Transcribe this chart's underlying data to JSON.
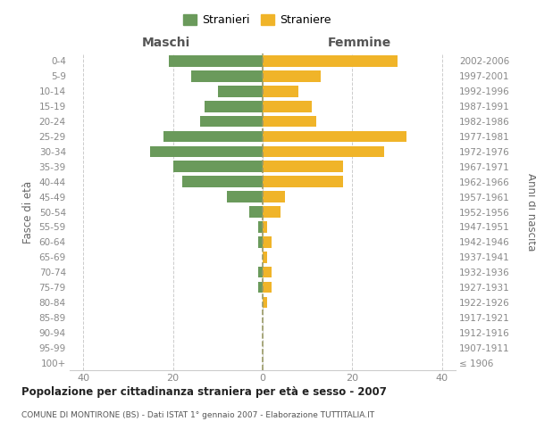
{
  "age_groups": [
    "100+",
    "95-99",
    "90-94",
    "85-89",
    "80-84",
    "75-79",
    "70-74",
    "65-69",
    "60-64",
    "55-59",
    "50-54",
    "45-49",
    "40-44",
    "35-39",
    "30-34",
    "25-29",
    "20-24",
    "15-19",
    "10-14",
    "5-9",
    "0-4"
  ],
  "birth_years": [
    "≤ 1906",
    "1907-1911",
    "1912-1916",
    "1917-1921",
    "1922-1926",
    "1927-1931",
    "1932-1936",
    "1937-1941",
    "1942-1946",
    "1947-1951",
    "1952-1956",
    "1957-1961",
    "1962-1966",
    "1967-1971",
    "1972-1976",
    "1977-1981",
    "1982-1986",
    "1987-1991",
    "1992-1996",
    "1997-2001",
    "2002-2006"
  ],
  "maschi": [
    0,
    0,
    0,
    0,
    0,
    1,
    1,
    0,
    1,
    1,
    3,
    8,
    18,
    20,
    25,
    22,
    14,
    13,
    10,
    16,
    21
  ],
  "femmine": [
    0,
    0,
    0,
    0,
    1,
    2,
    2,
    1,
    2,
    1,
    4,
    5,
    18,
    18,
    27,
    32,
    12,
    11,
    8,
    13,
    30
  ],
  "male_color": "#6a9a5b",
  "female_color": "#f0b429",
  "bar_height": 0.75,
  "xlim": 43,
  "title": "Popolazione per cittadinanza straniera per età e sesso - 2007",
  "subtitle": "COMUNE DI MONTIRONE (BS) - Dati ISTAT 1° gennaio 2007 - Elaborazione TUTTITALIA.IT",
  "ylabel_left": "Fasce di età",
  "ylabel_right": "Anni di nascita",
  "legend_male": "Stranieri",
  "legend_female": "Straniere",
  "col_left_label": "Maschi",
  "col_right_label": "Femmine",
  "background_color": "#ffffff",
  "grid_color": "#cccccc",
  "xticks": [
    -40,
    -20,
    0,
    20,
    40
  ]
}
